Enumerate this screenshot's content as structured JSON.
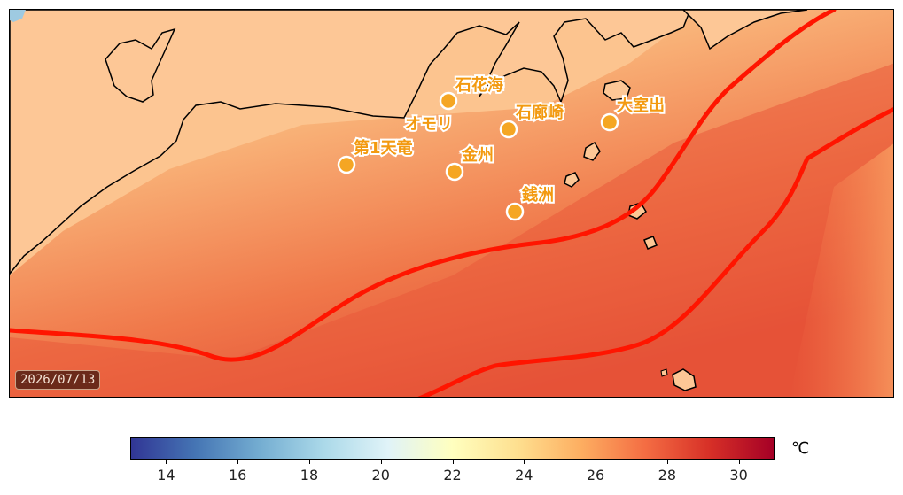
{
  "map": {
    "stations": [
      {
        "name": "石花海"
      },
      {
        "name": "石廊崎"
      },
      {
        "name": "大室出"
      },
      {
        "name": "オモリ"
      },
      {
        "name": "第1天竜"
      },
      {
        "name": "金州"
      },
      {
        "name": "銭洲"
      }
    ],
    "date": "2026/07/13",
    "colors": {
      "station_marker": "#f5a623",
      "station_label": "#f39a10",
      "current_line": "#ff1500",
      "land": "#fdc796",
      "coastline": "#000000"
    }
  },
  "colorbar": {
    "min": 13,
    "max": 31,
    "ticks": [
      "14",
      "16",
      "18",
      "20",
      "22",
      "24",
      "26",
      "28",
      "30"
    ],
    "unit": "℃",
    "colors": [
      "#313695",
      "#4575b4",
      "#74add1",
      "#abd9e9",
      "#e0f3f8",
      "#ffffbf",
      "#fee090",
      "#fdae61",
      "#f46d43",
      "#d73027",
      "#a50026"
    ]
  }
}
